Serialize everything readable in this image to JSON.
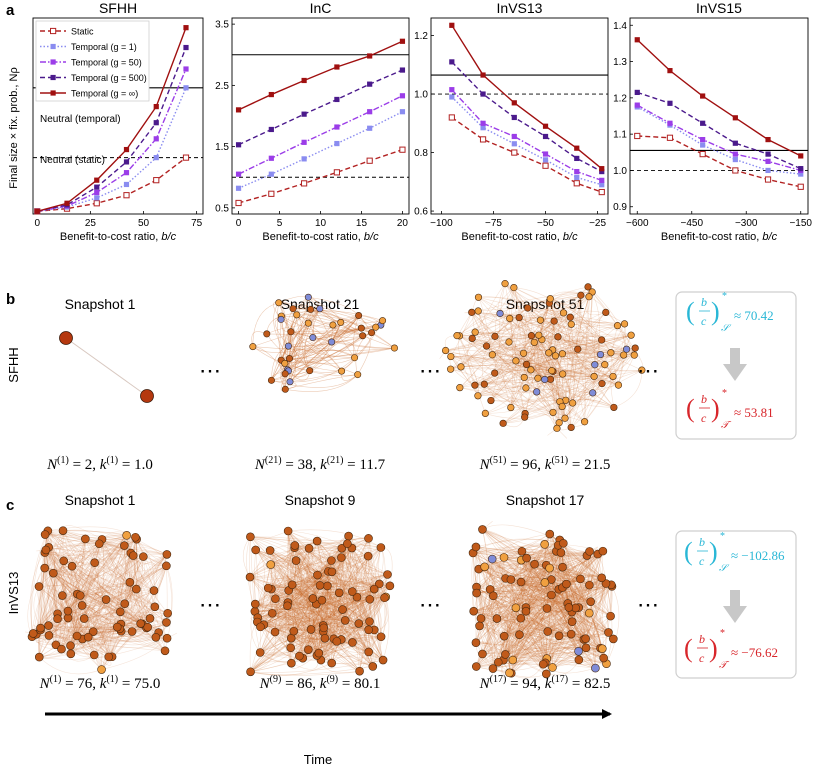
{
  "panel_labels": {
    "a": "a",
    "b": "b",
    "c": "c"
  },
  "y_axis_label": "Final size × fix. prob., Nρ",
  "x_axis_label": "Benefit-to-cost ratio, b/c",
  "neutral_temporal_label": "Neutral (temporal)",
  "neutral_static_label": "Neutral (static)",
  "legend": [
    {
      "label": "Static",
      "color": "#b22222",
      "dash": "dashed",
      "marker": "open-square"
    },
    {
      "label": "Temporal (g = 1)",
      "color": "#8a8cf0",
      "dash": "dotted",
      "marker": "square"
    },
    {
      "label": "Temporal (g = 50)",
      "color": "#9b3de8",
      "dash": "dashdot",
      "marker": "square"
    },
    {
      "label": "Temporal (g = 500)",
      "color": "#4b1a8c",
      "dash": "dashed",
      "marker": "square"
    },
    {
      "label": "Temporal (g = ∞)",
      "color": "#a01010",
      "dash": "solid",
      "marker": "square"
    }
  ],
  "chart_data": [
    {
      "type": "line",
      "title": "SFHH",
      "xlabel": "Benefit-to-cost ratio, b/c",
      "ylabel": "Final size × fix. prob., Nρ",
      "xlim": [
        -2,
        78
      ],
      "ylim": [
        -0.05,
        3.6
      ],
      "xticks": [
        0,
        25,
        50,
        75
      ],
      "yticks": [],
      "neutral_temporal": 2.3,
      "neutral_static": 1.0,
      "x": [
        0,
        14,
        28,
        42,
        56,
        70
      ],
      "series": [
        {
          "name": "Static",
          "values": [
            0.0,
            0.05,
            0.15,
            0.3,
            0.58,
            1.0
          ]
        },
        {
          "name": "Temporal (g = 1)",
          "values": [
            0.0,
            0.08,
            0.25,
            0.5,
            1.0,
            2.3
          ]
        },
        {
          "name": "Temporal (g = 50)",
          "values": [
            0.0,
            0.1,
            0.35,
            0.72,
            1.35,
            2.65
          ]
        },
        {
          "name": "Temporal (g = 500)",
          "values": [
            0.0,
            0.12,
            0.45,
            0.92,
            1.65,
            3.05
          ]
        },
        {
          "name": "Temporal (g = ∞)",
          "values": [
            0.0,
            0.15,
            0.58,
            1.15,
            1.95,
            3.42
          ]
        }
      ]
    },
    {
      "type": "line",
      "title": "InC",
      "xlabel": "Benefit-to-cost ratio, b/c",
      "ylabel": "",
      "xlim": [
        -0.8,
        20.8
      ],
      "ylim": [
        0.4,
        3.6
      ],
      "xticks": [
        0,
        5,
        10,
        15,
        20
      ],
      "yticks": [
        0.5,
        1.5,
        2.5,
        3.5
      ],
      "neutral_temporal": 3.0,
      "neutral_static": 1.0,
      "x": [
        0,
        4,
        8,
        12,
        16,
        20
      ],
      "series": [
        {
          "name": "Static",
          "values": [
            0.58,
            0.73,
            0.9,
            1.08,
            1.27,
            1.45
          ]
        },
        {
          "name": "Temporal (g = 1)",
          "values": [
            0.82,
            1.05,
            1.3,
            1.55,
            1.8,
            2.07
          ]
        },
        {
          "name": "Temporal (g = 50)",
          "values": [
            1.05,
            1.31,
            1.57,
            1.82,
            2.07,
            2.33
          ]
        },
        {
          "name": "Temporal (g = 500)",
          "values": [
            1.53,
            1.78,
            2.03,
            2.27,
            2.52,
            2.75
          ]
        },
        {
          "name": "Temporal (g = ∞)",
          "values": [
            2.1,
            2.35,
            2.58,
            2.8,
            2.98,
            3.22
          ]
        }
      ]
    },
    {
      "type": "line",
      "title": "InVS13",
      "xlabel": "Benefit-to-cost ratio, b/c",
      "ylabel": "",
      "xlim": [
        -105,
        -20
      ],
      "ylim": [
        0.59,
        1.26
      ],
      "xticks": [
        -100,
        -75,
        -50,
        -25
      ],
      "yticks": [
        0.6,
        0.8,
        1.0,
        1.2
      ],
      "neutral_temporal": 1.065,
      "neutral_static": 1.0,
      "x": [
        -95,
        -80,
        -65,
        -50,
        -35,
        -23
      ],
      "series": [
        {
          "name": "Static",
          "values": [
            0.92,
            0.845,
            0.8,
            0.755,
            0.695,
            0.665
          ]
        },
        {
          "name": "Temporal (g = 1)",
          "values": [
            0.99,
            0.885,
            0.83,
            0.775,
            0.715,
            0.69
          ]
        },
        {
          "name": "Temporal (g = 50)",
          "values": [
            1.015,
            0.9,
            0.855,
            0.795,
            0.735,
            0.705
          ]
        },
        {
          "name": "Temporal (g = 500)",
          "values": [
            1.11,
            1.0,
            0.92,
            0.855,
            0.78,
            0.735
          ]
        },
        {
          "name": "Temporal (g = ∞)",
          "values": [
            1.235,
            1.065,
            0.97,
            0.89,
            0.815,
            0.745
          ]
        }
      ]
    },
    {
      "type": "line",
      "title": "InVS15",
      "xlabel": "Benefit-to-cost ratio, b/c",
      "ylabel": "",
      "xlim": [
        -620,
        -130
      ],
      "ylim": [
        0.88,
        1.42
      ],
      "xticks": [
        -600,
        -450,
        -300,
        -150
      ],
      "yticks": [
        0.9,
        1.0,
        1.1,
        1.2,
        1.3,
        1.4
      ],
      "neutral_temporal": 1.055,
      "neutral_static": 1.0,
      "x": [
        -600,
        -510,
        -420,
        -330,
        -240,
        -150
      ],
      "series": [
        {
          "name": "Static",
          "values": [
            1.095,
            1.09,
            1.045,
            1.0,
            0.975,
            0.955
          ]
        },
        {
          "name": "Temporal (g = 1)",
          "values": [
            1.175,
            1.125,
            1.07,
            1.03,
            1.0,
            0.99
          ]
        },
        {
          "name": "Temporal (g = 50)",
          "values": [
            1.18,
            1.13,
            1.085,
            1.045,
            1.025,
            1.0
          ]
        },
        {
          "name": "Temporal (g = 500)",
          "values": [
            1.215,
            1.185,
            1.13,
            1.075,
            1.045,
            1.005
          ]
        },
        {
          "name": "Temporal (g = ∞)",
          "values": [
            1.36,
            1.275,
            1.205,
            1.145,
            1.085,
            1.04
          ]
        }
      ]
    }
  ],
  "panel_b": {
    "dataset": "SFHH",
    "snapshots": [
      {
        "title": "Snapshot 1",
        "N_label": "N",
        "N_sup": "(1)",
        "N_value": "2",
        "k_sup": "(1)",
        "k_value": "1.0"
      },
      {
        "title": "Snapshot 21",
        "N_label": "N",
        "N_sup": "(21)",
        "N_value": "38",
        "k_sup": "(21)",
        "k_value": "11.7"
      },
      {
        "title": "Snapshot 51",
        "N_label": "N",
        "N_sup": "(51)",
        "N_value": "96",
        "k_sup": "(51)",
        "k_value": "21.5"
      }
    ],
    "ellipsis": "⋯",
    "static_crit": "≈ 70.42",
    "temporal_crit": "≈ 53.81"
  },
  "panel_c": {
    "dataset": "InVS13",
    "snapshots": [
      {
        "title": "Snapshot 1",
        "N_sup": "(1)",
        "N_value": "76",
        "k_sup": "(1)",
        "k_value": "75.0"
      },
      {
        "title": "Snapshot 9",
        "N_sup": "(9)",
        "N_value": "86",
        "k_sup": "(9)",
        "k_value": "80.1"
      },
      {
        "title": "Snapshot 17",
        "N_sup": "(17)",
        "N_value": "94",
        "k_sup": "(17)",
        "k_value": "82.5"
      }
    ],
    "ellipsis": "⋯",
    "static_crit": "≈ −102.86",
    "temporal_crit": "≈ −76.62"
  },
  "time_label": "Time",
  "colors": {
    "static_crit": "#29b7d6",
    "temporal_crit": "#d8262b",
    "edge": "#c8692a",
    "node": "#c05a1a",
    "node_light": "#f0a040",
    "node_blue": "#7f8cd8"
  }
}
